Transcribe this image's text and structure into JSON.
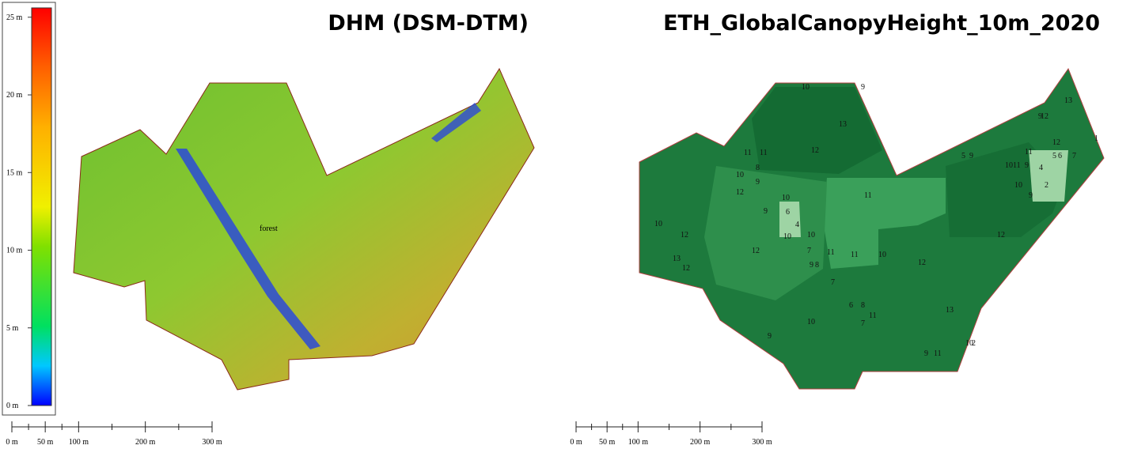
{
  "left_map": {
    "title": "DHM (DSM-DTM)",
    "label": "forest",
    "colorbar": {
      "lim": [
        0,
        25.6
      ],
      "ticks": [
        {
          "value": 0,
          "label": "0 m"
        },
        {
          "value": 5,
          "label": "5 m"
        },
        {
          "value": 10,
          "label": "10 m"
        },
        {
          "value": 15,
          "label": "15 m"
        },
        {
          "value": 20,
          "label": "20 m"
        },
        {
          "value": 25,
          "label": "25 m"
        }
      ]
    },
    "scalebar": {
      "lim": [
        0,
        300
      ],
      "ticks": [
        {
          "value": 0,
          "label": "0 m"
        },
        {
          "value": 50,
          "label": "50 m"
        },
        {
          "value": 100,
          "label": "100 m"
        },
        {
          "value": 200,
          "label": "200 m"
        },
        {
          "value": 300,
          "label": "300 m"
        }
      ],
      "minor_ticks": [
        25,
        75,
        150,
        250
      ]
    }
  },
  "right_map": {
    "title": "ETH_GlobalCanopyHeight_10m_2020",
    "cell_labels": [
      "10",
      "9",
      "13",
      "12",
      "11",
      "10",
      "11",
      "8",
      "9",
      "12",
      "10",
      "9",
      "6",
      "4",
      "10",
      "10",
      "7",
      "9",
      "8",
      "11",
      "11",
      "10",
      "11",
      "13",
      "12",
      "10",
      "12",
      "12",
      "7",
      "6",
      "8",
      "11",
      "7",
      "10",
      "9",
      "11",
      "9",
      "10",
      "2",
      "13",
      "12",
      "11",
      "10",
      "6",
      "5",
      "7",
      "4",
      "2",
      "9",
      "12",
      "13",
      "12",
      "10",
      "9",
      "5",
      "9",
      "11",
      "9",
      "12",
      "1"
    ],
    "scalebar": {
      "lim": [
        0,
        300
      ],
      "ticks": [
        {
          "value": 0,
          "label": "0 m"
        },
        {
          "value": 50,
          "label": "50 m"
        },
        {
          "value": 100,
          "label": "100 m"
        },
        {
          "value": 200,
          "label": "200 m"
        },
        {
          "value": 300,
          "label": "300 m"
        }
      ],
      "minor_ticks": [
        25,
        75,
        150,
        250
      ]
    }
  }
}
